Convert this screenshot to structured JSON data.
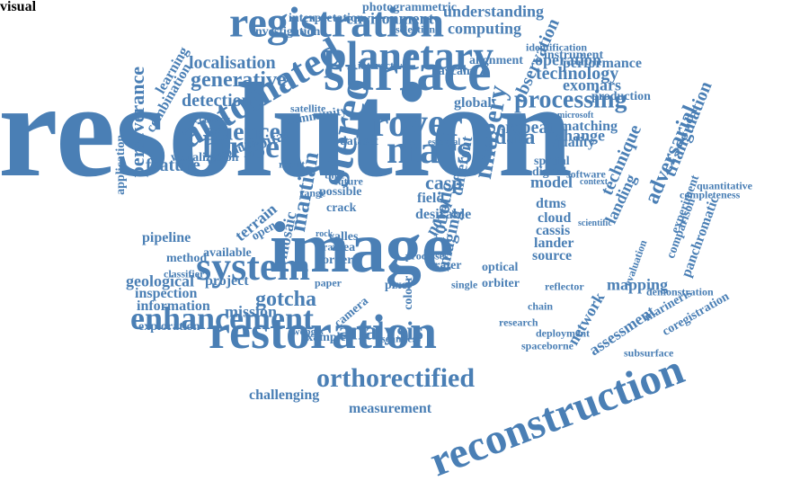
{
  "colors": {
    "word": "#4a7fb5",
    "background": "#ffffff"
  },
  "words": [
    "resolution",
    "image",
    "restoration",
    "reconstruction",
    "registration",
    "surface",
    "planetary",
    "rover",
    "stereo",
    "automated",
    "hirise",
    "mars",
    "system",
    "enhancement",
    "orthorectified",
    "processing",
    "technology",
    "science",
    "generative",
    "detection",
    "localisation",
    "imagery",
    "data",
    "casp",
    "adversarial",
    "triangulation",
    "technique",
    "landing",
    "mapping",
    "network",
    "assessment",
    "analysis",
    "gotcha",
    "mission",
    "inspection",
    "information",
    "geological",
    "project",
    "pipeline",
    "feature",
    "perseverance",
    "application",
    "observation",
    "environment",
    "computing",
    "understanding",
    "photogrammetric",
    "interpretation",
    "investigation",
    "selection",
    "identification",
    "instrument",
    "operation",
    "performance",
    "production",
    "exomars",
    "repeat",
    "quality",
    "matching",
    "change",
    "spatial",
    "digital",
    "model",
    "dtms",
    "cloud",
    "cassis",
    "lander",
    "source",
    "martian",
    "mosaic",
    "robotic",
    "imaging",
    "novel",
    "different",
    "field",
    "crater",
    "optical",
    "orbiter",
    "reflector",
    "demonstration",
    "panchromatic",
    "experiment",
    "comparison",
    "completeness",
    "quantitative",
    "exploration",
    "example",
    "camera",
    "seamless",
    "research",
    "deployment",
    "spaceborne",
    "subsurface",
    "coregistration",
    "marineris",
    "evaluation",
    "challenging",
    "measurement",
    "terrain",
    "orbital",
    "global",
    "navcam",
    "alignment",
    "interactive",
    "community",
    "satellite",
    "introduce",
    "accuracy",
    "combination",
    "learning",
    "visualization",
    "available",
    "method",
    "classifier",
    "dataset",
    "result",
    "possible",
    "crack",
    "valles",
    "rock",
    "track",
    "area",
    "order",
    "paper",
    "colour",
    "processes",
    "pixel",
    "single",
    "chain",
    "desirable",
    "time",
    "future",
    "range",
    "open",
    "webgis",
    "microsoft",
    "software",
    "context",
    "scientific",
    "essential",
    "visual"
  ]
}
